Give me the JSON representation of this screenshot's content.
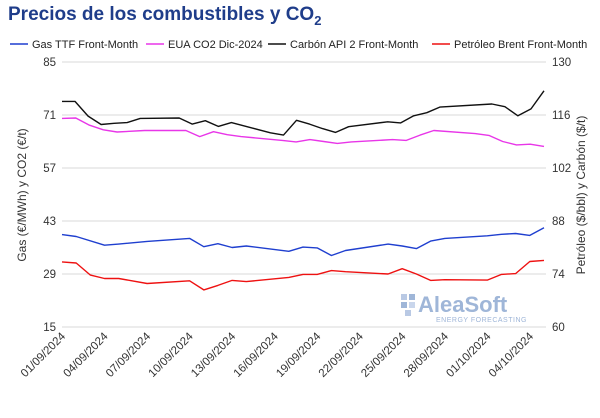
{
  "chart_data": {
    "type": "line",
    "title_main": "Precios de los combustibles y CO",
    "title_sub": "2",
    "ylabel_left": "Gas (€/MWh) y CO2 (€/t)",
    "ylabel_right": "Petróleo ($/bbl) y Carbón ($/t)",
    "ylim_left": [
      15,
      85
    ],
    "ylim_right": [
      60,
      130
    ],
    "yticks_left": [
      "85",
      "71",
      "57",
      "43",
      "29",
      "15"
    ],
    "yticks_right": [
      "130",
      "116",
      "102",
      "88",
      "74",
      "60"
    ],
    "grid": "horizontal",
    "legend_position": "top",
    "x_tick_labels": [
      "01/09/2024",
      "04/09/2024",
      "07/09/2024",
      "10/09/2024",
      "13/09/2024",
      "16/09/2024",
      "19/09/2024",
      "22/09/2024",
      "25/09/2024",
      "28/09/2024",
      "01/10/2024",
      "04/10/2024"
    ],
    "x_tick_days": [
      0,
      3,
      6,
      9,
      12,
      15,
      18,
      21,
      24,
      27,
      30,
      33
    ],
    "x_range_days": [
      0,
      33
    ],
    "series": [
      {
        "name": "Gas TTF Front-Month",
        "color": "#1f3fcf",
        "axis": "left",
        "points": [
          [
            0,
            39.4
          ],
          [
            1,
            38.9
          ],
          [
            3,
            36.6
          ],
          [
            4,
            36.9
          ],
          [
            6,
            37.6
          ],
          [
            9,
            38.4
          ],
          [
            10,
            36.2
          ],
          [
            11,
            37.0
          ],
          [
            12,
            36.0
          ],
          [
            13,
            36.4
          ],
          [
            16,
            35.0
          ],
          [
            17,
            36.1
          ],
          [
            18,
            35.9
          ],
          [
            19,
            33.9
          ],
          [
            20,
            35.2
          ],
          [
            23,
            36.9
          ],
          [
            24,
            36.4
          ],
          [
            25,
            35.7
          ],
          [
            26,
            37.7
          ],
          [
            27,
            38.4
          ],
          [
            30,
            39.1
          ],
          [
            31,
            39.5
          ],
          [
            32,
            39.7
          ],
          [
            33,
            39.2
          ],
          [
            34,
            41.2
          ]
        ]
      },
      {
        "name": "EUA CO2 Dic-2024",
        "color": "#e836e8",
        "axis": "left",
        "points": [
          [
            0,
            70.1
          ],
          [
            1,
            70.2
          ],
          [
            2,
            68.3
          ],
          [
            3,
            67.1
          ],
          [
            4,
            66.5
          ],
          [
            6,
            66.9
          ],
          [
            9,
            66.9
          ],
          [
            10,
            65.3
          ],
          [
            11,
            66.6
          ],
          [
            12,
            65.8
          ],
          [
            13,
            65.3
          ],
          [
            16,
            64.3
          ],
          [
            17,
            63.9
          ],
          [
            18,
            64.5
          ],
          [
            19,
            64.0
          ],
          [
            20,
            63.5
          ],
          [
            21,
            63.9
          ],
          [
            24,
            64.5
          ],
          [
            25,
            64.3
          ],
          [
            26,
            65.7
          ],
          [
            27,
            66.9
          ],
          [
            30,
            66.1
          ],
          [
            31,
            65.6
          ],
          [
            32,
            64.0
          ],
          [
            33,
            63.1
          ],
          [
            34,
            63.3
          ],
          [
            35,
            62.7
          ]
        ]
      },
      {
        "name": "Carbón API 2 Front-Month",
        "color": "#111111",
        "axis": "right",
        "points": [
          [
            0,
            119.6
          ],
          [
            1,
            119.6
          ],
          [
            2,
            115.7
          ],
          [
            3,
            113.5
          ],
          [
            4,
            113.8
          ],
          [
            5,
            114.0
          ],
          [
            6,
            115.1
          ],
          [
            9,
            115.2
          ],
          [
            10,
            113.6
          ],
          [
            11,
            114.5
          ],
          [
            12,
            113.0
          ],
          [
            13,
            114.0
          ],
          [
            16,
            111.3
          ],
          [
            17,
            110.7
          ],
          [
            18,
            114.6
          ],
          [
            19,
            113.6
          ],
          [
            20,
            112.4
          ],
          [
            21,
            111.4
          ],
          [
            22,
            112.9
          ],
          [
            25,
            114.2
          ],
          [
            26,
            113.9
          ],
          [
            27,
            115.8
          ],
          [
            28,
            116.6
          ],
          [
            29,
            118.1
          ],
          [
            33,
            118.9
          ],
          [
            34,
            118.2
          ],
          [
            35,
            115.8
          ],
          [
            36,
            117.6
          ],
          [
            37,
            122.4
          ]
        ]
      },
      {
        "name": "Petróleo Brent Front-Month",
        "color": "#ee1111",
        "axis": "right",
        "points": [
          [
            0,
            77.2
          ],
          [
            1,
            76.9
          ],
          [
            2,
            73.7
          ],
          [
            3,
            72.8
          ],
          [
            4,
            72.8
          ],
          [
            6,
            71.5
          ],
          [
            9,
            72.2
          ],
          [
            10,
            69.8
          ],
          [
            11,
            71.0
          ],
          [
            12,
            72.3
          ],
          [
            13,
            72.0
          ],
          [
            16,
            73.1
          ],
          [
            17,
            73.9
          ],
          [
            18,
            73.9
          ],
          [
            19,
            74.9
          ],
          [
            20,
            74.6
          ],
          [
            23,
            74.0
          ],
          [
            24,
            75.4
          ],
          [
            25,
            74.0
          ],
          [
            26,
            72.3
          ],
          [
            27,
            72.5
          ],
          [
            30,
            72.4
          ],
          [
            31,
            73.9
          ],
          [
            32,
            74.1
          ],
          [
            33,
            77.3
          ],
          [
            34,
            77.6
          ]
        ]
      }
    ]
  },
  "watermark": {
    "brand": "AleaSoft",
    "tagline": "ENERGY FORECASTING"
  }
}
